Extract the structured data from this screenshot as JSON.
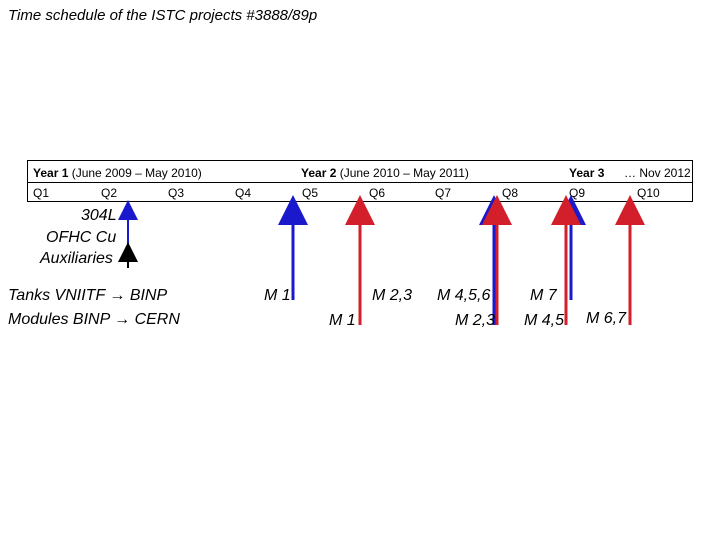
{
  "title": "Time schedule of the ISTC projects #3888/89p",
  "years": [
    {
      "bold": "Year 1",
      "rest": " (June 2009 – May 2010)"
    },
    {
      "bold": "Year 2",
      "rest": " (June 2010 – May 2011)"
    },
    {
      "bold": "Year 3",
      "rest": ""
    },
    {
      "bold": "",
      "rest": "… Nov 2012"
    }
  ],
  "quarters": [
    "Q1",
    "Q2",
    "Q3",
    "Q4",
    "Q5",
    "Q6",
    "Q7",
    "Q8",
    "Q9",
    "Q10"
  ],
  "materials": {
    "line1": "304L",
    "line2": "OFHC Cu",
    "line3": "Auxiliaries"
  },
  "flows": {
    "tanks": "Tanks VNIITF → BINP",
    "modules": "Modules BINP → CERN"
  },
  "milestones": {
    "blue_m1": "M 1",
    "red_m1": "M 1",
    "red_m23_top": "M 2,3",
    "blue_m456": "M 4,5,6",
    "red_m23_bottom": "M 2,3",
    "blue_m7": "M 7",
    "red_m45": "M 4,5",
    "red_m67": "M 6,7"
  },
  "colors": {
    "blue": "#1a1acc",
    "red": "#d21f2b",
    "black": "#000000"
  }
}
